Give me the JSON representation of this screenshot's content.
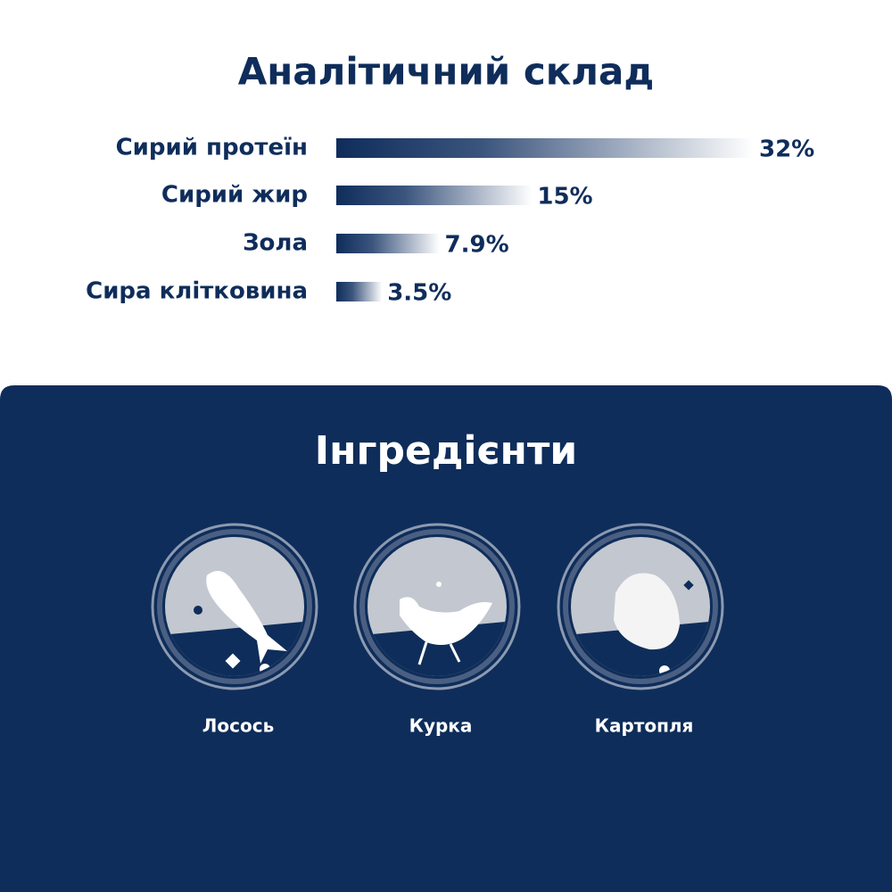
{
  "chart_data": {
    "type": "bar",
    "orientation": "horizontal",
    "title": "Аналітичний склад",
    "categories": [
      "Сирий протеїн",
      "Сирий жир",
      "Зола",
      "Сира клітковина"
    ],
    "values": [
      32,
      15,
      7.9,
      3.5
    ],
    "value_labels": [
      "32%",
      "15%",
      "7.9%",
      "3.5%"
    ],
    "color": "#0f2d5b"
  },
  "ingredients": {
    "title": "Інгредієнти",
    "items": [
      {
        "label": "Лосось"
      },
      {
        "label": "Курка"
      },
      {
        "label": "Картопля"
      }
    ]
  }
}
